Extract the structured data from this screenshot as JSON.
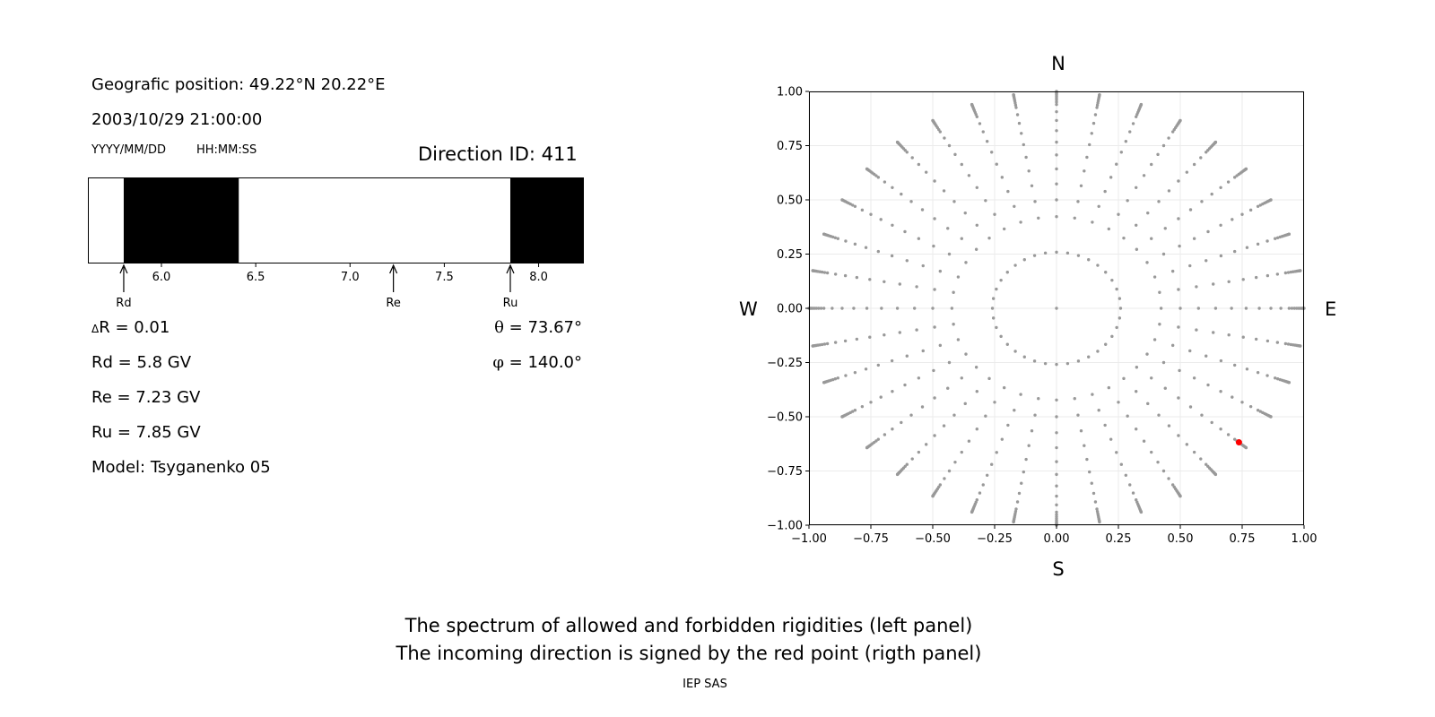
{
  "left_panel": {
    "position_text": "Geografic position: 49.22°N 20.22°E",
    "datetime": "2003/10/29 21:00:00",
    "date_format": "YYYY/MM/DD",
    "time_format": "HH:MM:SS",
    "direction_id": "Direction ID: 411",
    "delta_r_symbol": "Δ",
    "delta_r_text": "R = 0.01",
    "rd_text": "Rd = 5.8 GV",
    "re_text": "Re = 7.23 GV",
    "ru_text": "Ru = 7.85 GV",
    "model_text": "Model: Tsyganenko 05",
    "theta_symbol": "θ",
    "theta_text": " = 73.67°",
    "phi_symbol": "φ",
    "phi_text": " = 140.0°"
  },
  "right_panel": {
    "north": "N",
    "south": "S",
    "west": "W",
    "east": "E"
  },
  "footer": {
    "line1": "The spectrum of allowed and forbidden rigidities (left panel)",
    "line2": "The incoming direction is signed by the red point (rigth panel)",
    "credit": "IEP SAS"
  },
  "chart_data": [
    {
      "type": "bar",
      "name": "rigidity-spectrum",
      "xlim": [
        5.61,
        8.24
      ],
      "xticks": [
        "6.0",
        "6.5",
        "7.0",
        "7.5",
        "8.0"
      ],
      "forbidden_intervals": [
        [
          5.8,
          6.41
        ],
        [
          7.85,
          8.24
        ]
      ],
      "colors": {
        "forbidden": "#000000",
        "allowed": "#ffffff"
      },
      "markers": [
        {
          "label": "Rd",
          "value": 5.8
        },
        {
          "label": "Re",
          "value": 7.23
        },
        {
          "label": "Ru",
          "value": 7.85
        }
      ]
    },
    {
      "type": "scatter",
      "name": "asymptotic-directions",
      "xlim": [
        -1.0,
        1.0
      ],
      "ylim": [
        -1.0,
        1.0
      ],
      "xticks": [
        "−1.00",
        "−0.75",
        "−0.50",
        "−0.25",
        "0.00",
        "0.25",
        "0.50",
        "0.75",
        "1.00"
      ],
      "yticks": [
        "1.00",
        "0.75",
        "0.50",
        "0.25",
        "0.00",
        "−0.25",
        "−0.50",
        "−0.75",
        "−1.00"
      ],
      "grid": true,
      "grid_points": {
        "zenith_angles_deg": [
          0,
          15,
          25,
          30,
          35,
          40,
          45,
          50,
          55,
          60,
          65,
          70,
          72,
          74,
          76,
          78,
          80,
          82,
          84,
          86,
          88,
          90
        ],
        "azimuth_step_deg": 10,
        "color": "#999999"
      },
      "highlight": {
        "theta_deg": 73.67,
        "phi_deg": 140.0,
        "x": 0.737,
        "y": -0.618,
        "color": "#ff0000"
      }
    }
  ]
}
